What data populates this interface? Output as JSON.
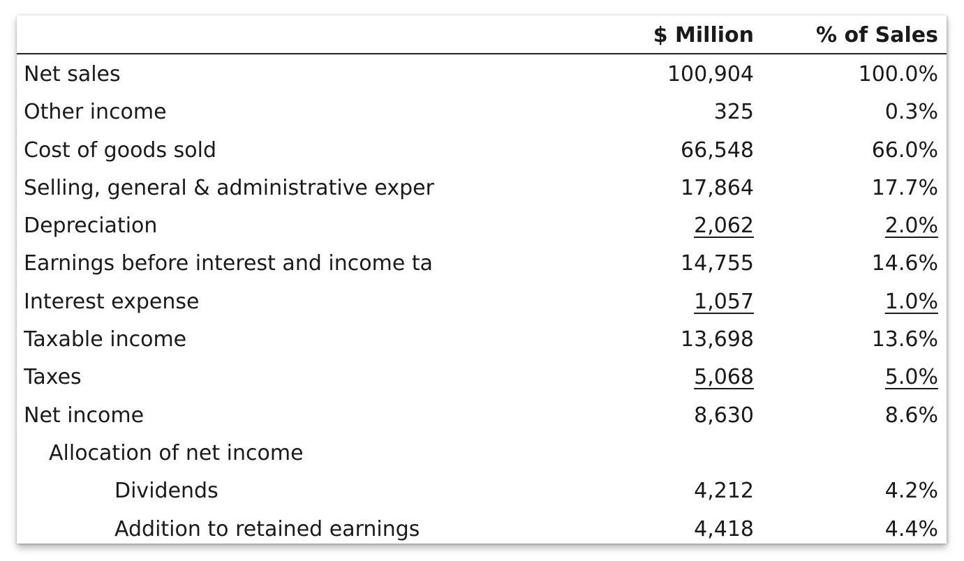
{
  "header": {
    "col_million": "$ Million",
    "col_pct": "% of Sales"
  },
  "rows": [
    {
      "label": "Net sales",
      "million": "100,904",
      "pct": "100.0%"
    },
    {
      "label": "Other income",
      "million": "325",
      "pct": "0.3%"
    },
    {
      "label": "Cost of goods sold",
      "million": "66,548",
      "pct": "66.0%"
    },
    {
      "label": "Selling, general & administrative exper",
      "million": "17,864",
      "pct": "17.7%"
    },
    {
      "label": "Depreciation",
      "million": "2,062",
      "pct": "2.0%"
    },
    {
      "label": "Earnings before interest and income ta",
      "million": "14,755",
      "pct": "14.6%"
    },
    {
      "label": "Interest expense",
      "million": "1,057",
      "pct": "1.0%"
    },
    {
      "label": "Taxable income",
      "million": "13,698",
      "pct": "13.6%"
    },
    {
      "label": "Taxes",
      "million": "5,068",
      "pct": "5.0%"
    },
    {
      "label": "Net income",
      "million": "8,630",
      "pct": "8.6%"
    },
    {
      "label": "Allocation of net income",
      "million": "",
      "pct": ""
    },
    {
      "label": "Dividends",
      "million": "4,212",
      "pct": "4.2%"
    },
    {
      "label": "Addition to retained earnings",
      "million": "4,418",
      "pct": "4.4%"
    }
  ]
}
